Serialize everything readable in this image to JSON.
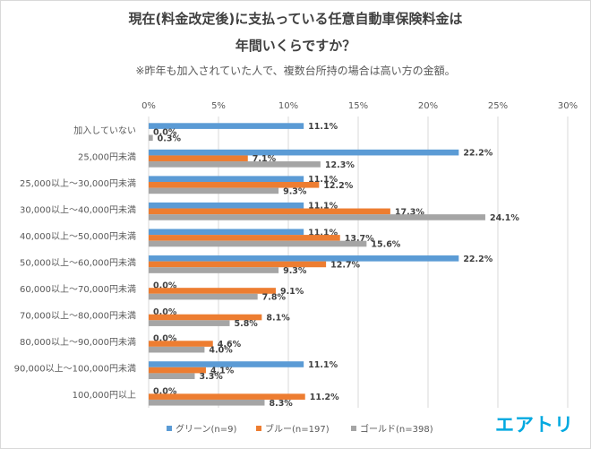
{
  "title_line1": "現在(料金改定後)に支払っている任意自動車保険料金は",
  "title_line2": "年間いくらですか？",
  "subtitle": "※昨年も加入されていた人で、複数台所持の場合は高い方の金額。",
  "brand": "エアトリ",
  "chart_data": {
    "type": "bar",
    "orientation": "horizontal",
    "title": "現在(料金改定後)に支払っている任意自動車保険料金は年間いくらですか？",
    "xlim": [
      0,
      30
    ],
    "xticks": [
      "0%",
      "5%",
      "10%",
      "15%",
      "20%",
      "25%",
      "30%"
    ],
    "grid": true,
    "legend_position": "bottom",
    "categories": [
      "加入していない",
      "25,000円未満",
      "25,000以上～30,000円未満",
      "30,000以上～40,000円未満",
      "40,000以上～50,000円未満",
      "50,000以上～60,000円未満",
      "60,000以上～70,000円未満",
      "70,000以上～80,000円未満",
      "80,000以上～90,000円未満",
      "90,000以上～100,000円未満",
      "100,000円以上"
    ],
    "series": [
      {
        "name": "グリーン(n=9)",
        "color": "#5b9bd5",
        "values": [
          11.1,
          22.2,
          11.1,
          11.1,
          11.1,
          22.2,
          0.0,
          0.0,
          0.0,
          11.1,
          0.0
        ],
        "labels": [
          "11.1%",
          "22.2%",
          "11.1%",
          "11.1%",
          "11.1%",
          "22.2%",
          "0.0%",
          "0.0%",
          "0.0%",
          "11.1%",
          "0.0%"
        ]
      },
      {
        "name": "ブルー(n=197)",
        "color": "#ed7d31",
        "values": [
          0.0,
          7.1,
          12.2,
          17.3,
          13.7,
          12.7,
          9.1,
          8.1,
          4.6,
          4.1,
          11.2
        ],
        "labels": [
          "0.0%",
          "7.1%",
          "12.2%",
          "17.3%",
          "13.7%",
          "12.7%",
          "9.1%",
          "8.1%",
          "4.6%",
          "4.1%",
          "11.2%"
        ]
      },
      {
        "name": "ゴールド(n=398)",
        "color": "#a5a5a5",
        "values": [
          0.3,
          12.3,
          9.3,
          24.1,
          15.6,
          9.3,
          7.8,
          5.8,
          4.0,
          3.3,
          8.3
        ],
        "labels": [
          "0.3%",
          "12.3%",
          "9.3%",
          "24.1%",
          "15.6%",
          "9.3%",
          "7.8%",
          "5.8%",
          "4.0%",
          "3.3%",
          "8.3%"
        ]
      }
    ]
  }
}
